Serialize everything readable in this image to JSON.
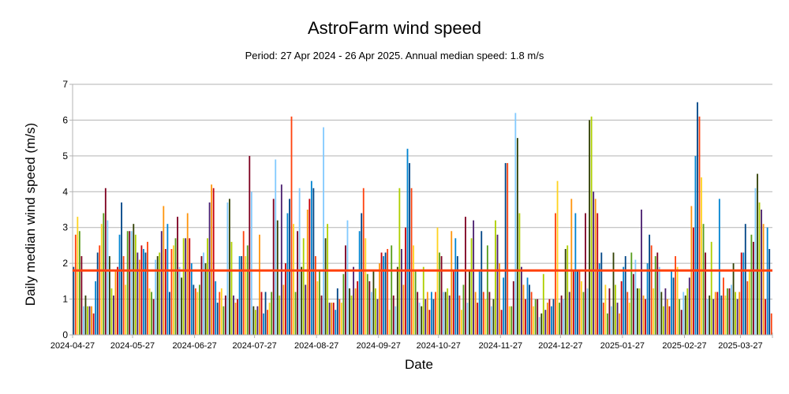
{
  "chart_data": {
    "type": "bar",
    "title": "AstroFarm wind speed",
    "subtitle": "Period: 27 Apr 2024 - 26 Apr 2025. Annual median speed: 1.8 m/s",
    "xlabel": "Date",
    "ylabel": "Daily median wind speed (m/s)",
    "ylim": [
      0,
      7
    ],
    "yticks": [
      "0",
      "1",
      "2",
      "3",
      "4",
      "5",
      "6",
      "7"
    ],
    "xticks": [
      "2024-04-27",
      "2024-05-27",
      "2024-06-27",
      "2024-07-27",
      "2024-08-27",
      "2024-09-27",
      "2024-10-27",
      "2024-11-27",
      "2024-12-27",
      "2025-01-27",
      "2025-02-27",
      "2025-03-27"
    ],
    "start_date": "2024-04-27",
    "grid": true,
    "reference_line": {
      "value": 1.8,
      "color": "#ff420e"
    },
    "palette": [
      "#004586",
      "#ff420e",
      "#ffd320",
      "#579d1c",
      "#7e0021",
      "#83caff",
      "#314004",
      "#aecf00",
      "#4b1f6f",
      "#ff950e",
      "#c5000b",
      "#0084d1"
    ],
    "values": [
      1.9,
      2.8,
      3.3,
      2.9,
      2.2,
      0.8,
      1.1,
      0.8,
      0.8,
      0.8,
      0.6,
      1.5,
      2.3,
      2.5,
      3.1,
      3.4,
      4.1,
      3.2,
      2.2,
      1.3,
      1.1,
      1.8,
      1.9,
      2.8,
      3.7,
      2.2,
      1.4,
      2.9,
      2.9,
      2.9,
      3.1,
      2.8,
      2.3,
      2.1,
      2.5,
      2.4,
      2.3,
      2.6,
      1.3,
      1.2,
      1.0,
      2.1,
      2.2,
      2.3,
      2.9,
      3.6,
      2.4,
      3.1,
      1.2,
      2.4,
      2.5,
      2.7,
      3.3,
      1.9,
      1.6,
      2.7,
      2.7,
      3.4,
      2.7,
      2.0,
      1.4,
      1.3,
      1.2,
      1.4,
      2.2,
      2.3,
      2.0,
      2.7,
      3.7,
      4.2,
      4.1,
      1.5,
      0.9,
      1.2,
      1.3,
      0.8,
      1.1,
      3.7,
      3.8,
      2.6,
      1.1,
      0.9,
      1.0,
      2.2,
      2.2,
      2.9,
      2.2,
      2.5,
      5.0,
      4.0,
      0.8,
      0.7,
      0.8,
      2.8,
      1.2,
      0.6,
      1.2,
      0.7,
      0.9,
      1.2,
      3.8,
      4.9,
      3.2,
      1.1,
      4.2,
      1.4,
      2.0,
      3.4,
      3.8,
      6.1,
      3.1,
      1.2,
      2.9,
      4.1,
      1.9,
      2.7,
      1.4,
      3.5,
      3.8,
      4.3,
      4.1,
      2.2,
      1.5,
      1.8,
      1.1,
      5.8,
      2.7,
      3.1,
      0.9,
      0.9,
      0.9,
      0.7,
      1.3,
      1.0,
      0.9,
      1.7,
      2.5,
      3.2,
      1.3,
      1.1,
      1.9,
      1.3,
      1.5,
      2.9,
      3.4,
      4.1,
      2.7,
      1.7,
      1.5,
      1.2,
      1.8,
      1.3,
      1.0,
      2.0,
      2.3,
      2.2,
      2.3,
      2.4,
      0.7,
      2.5,
      1.1,
      0.8,
      1.9,
      4.1,
      2.4,
      1.4,
      3.0,
      5.2,
      4.8,
      4.1,
      2.5,
      1.8,
      1.2,
      0.9,
      0.8,
      1.9,
      1.0,
      1.2,
      0.7,
      1.2,
      1.0,
      1.2,
      3.0,
      2.3,
      2.2,
      1.2,
      1.2,
      1.3,
      1.1,
      2.9,
      1.8,
      2.7,
      2.2,
      1.1,
      0.7,
      1.4,
      3.3,
      0.9,
      1.8,
      2.7,
      3.2,
      1.2,
      0.9,
      1.8,
      2.9,
      1.2,
      1.0,
      2.5,
      1.2,
      0.8,
      1.0,
      3.2,
      2.8,
      2.0,
      0.7,
      1.6,
      4.8,
      4.8,
      0.8,
      0.8,
      1.5,
      6.2,
      5.5,
      3.4,
      1.9,
      1.4,
      1.0,
      1.6,
      1.4,
      1.2,
      0.8,
      1.0,
      1.0,
      0.5,
      0.6,
      1.7,
      0.7,
      0.9,
      1.0,
      0.8,
      1.0,
      3.4,
      4.3,
      0.9,
      1.1,
      1.0,
      2.4,
      2.5,
      1.2,
      3.8,
      1.8,
      3.4,
      1.8,
      1.8,
      1.5,
      1.2,
      3.4,
      1.3,
      6.0,
      6.1,
      4.0,
      3.8,
      3.4,
      2.0,
      2.3,
      0.9,
      1.4,
      0.6,
      1.3,
      0.8,
      2.3,
      1.4,
      0.9,
      0.6,
      1.5,
      1.9,
      2.2,
      1.2,
      0.9,
      2.3,
      1.7,
      2.1,
      1.3,
      1.3,
      3.5,
      1.1,
      1.0,
      2.0,
      2.8,
      2.5,
      1.3,
      2.2,
      2.3,
      1.9,
      1.2,
      0.8,
      1.3,
      1.0,
      0.8,
      1.8,
      1.6,
      2.2,
      1.9,
      1.0,
      0.7,
      1.2,
      1.1,
      1.3,
      1.6,
      3.6,
      3.0,
      5.0,
      6.5,
      6.1,
      4.4,
      3.1,
      2.3,
      1.0,
      1.1,
      2.6,
      1.0,
      1.2,
      1.2,
      3.8,
      1.1,
      1.6,
      1.1,
      1.3,
      1.3,
      1.4,
      2.0,
      1.2,
      1.0,
      1.2,
      2.3,
      2.3,
      3.1,
      1.5,
      1.8,
      2.8,
      2.6,
      4.1,
      4.5,
      3.7,
      3.5,
      3.1,
      1.0,
      3.0,
      2.4,
      0.6
    ]
  }
}
